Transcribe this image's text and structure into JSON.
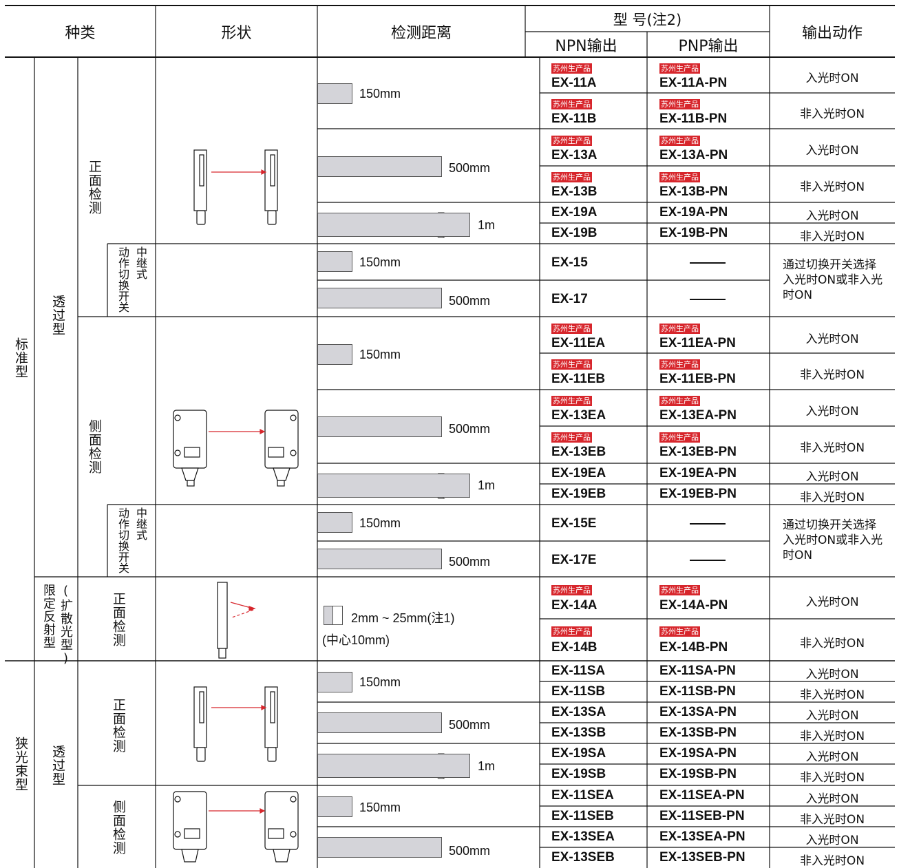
{
  "header": {
    "kind": "种类",
    "shape": "形状",
    "distance": "检测距离",
    "model": "型 号(注2)",
    "npn": "NPN输出",
    "pnp": "PNP输出",
    "output": "输出动作"
  },
  "categories": {
    "standard": "标准型",
    "narrow": "狭光束型",
    "through": "透过型",
    "through2": "透过型",
    "limited": "限定反射型",
    "diffuse": "(扩散光型)",
    "front1": "正面检测",
    "side1": "侧面检测",
    "front_lim": "正面检测",
    "front2": "正面检测",
    "side2": "侧面检测",
    "relay1a": "中继式",
    "relay1b": "动作切换开关",
    "relay2a": "中继式",
    "relay2b": "动作切换开关"
  },
  "tag": "苏州生产品",
  "dash": "—",
  "distances": {
    "d150": "150mm",
    "d500": "500mm",
    "d1m": "1m",
    "limited": "2mm ~ 25mm(注1)",
    "limited_center": "(中心10mm)"
  },
  "actions": {
    "on": "入光时ON",
    "off": "非入光时ON",
    "switch": "通过切换开关选择入光时ON或非入光时ON"
  },
  "rows": [
    {
      "npn": "EX-11A",
      "pnp": "EX-11A-PN",
      "act": "入光时ON"
    },
    {
      "npn": "EX-11B",
      "pnp": "EX-11B-PN",
      "act": "非入光时ON"
    },
    {
      "npn": "EX-13A",
      "pnp": "EX-13A-PN",
      "act": "入光时ON"
    },
    {
      "npn": "EX-13B",
      "pnp": "EX-13B-PN",
      "act": "非入光时ON"
    },
    {
      "npn": "EX-19A",
      "pnp": "EX-19A-PN",
      "act": "入光时ON"
    },
    {
      "npn": "EX-19B",
      "pnp": "EX-19B-PN",
      "act": "非入光时ON"
    },
    {
      "npn": "EX-15",
      "pnp": "",
      "act": ""
    },
    {
      "npn": "EX-17",
      "pnp": "",
      "act": ""
    },
    {
      "npn": "EX-11EA",
      "pnp": "EX-11EA-PN",
      "act": "入光时ON"
    },
    {
      "npn": "EX-11EB",
      "pnp": "EX-11EB-PN",
      "act": "非入光时ON"
    },
    {
      "npn": "EX-13EA",
      "pnp": "EX-13EA-PN",
      "act": "入光时ON"
    },
    {
      "npn": "EX-13EB",
      "pnp": "EX-13EB-PN",
      "act": "非入光时ON"
    },
    {
      "npn": "EX-19EA",
      "pnp": "EX-19EA-PN",
      "act": "入光时ON"
    },
    {
      "npn": "EX-19EB",
      "pnp": "EX-19EB-PN",
      "act": "非入光时ON"
    },
    {
      "npn": "EX-15E",
      "pnp": "",
      "act": ""
    },
    {
      "npn": "EX-17E",
      "pnp": "",
      "act": ""
    },
    {
      "npn": "EX-14A",
      "pnp": "EX-14A-PN",
      "act": "入光时ON"
    },
    {
      "npn": "EX-14B",
      "pnp": "EX-14B-PN",
      "act": "非入光时ON"
    },
    {
      "npn": "EX-11SA",
      "pnp": "EX-11SA-PN",
      "act": "入光时ON"
    },
    {
      "npn": "EX-11SB",
      "pnp": "EX-11SB-PN",
      "act": "非入光时ON"
    },
    {
      "npn": "EX-13SA",
      "pnp": "EX-13SA-PN",
      "act": "入光时ON"
    },
    {
      "npn": "EX-13SB",
      "pnp": "EX-13SB-PN",
      "act": "非入光时ON"
    },
    {
      "npn": "EX-19SA",
      "pnp": "EX-19SA-PN",
      "act": "入光时ON"
    },
    {
      "npn": "EX-19SB",
      "pnp": "EX-19SB-PN",
      "act": "非入光时ON"
    },
    {
      "npn": "EX-11SEA",
      "pnp": "EX-11SEA-PN",
      "act": "入光时ON"
    },
    {
      "npn": "EX-11SEB",
      "pnp": "EX-11SEB-PN",
      "act": "非入光时ON"
    },
    {
      "npn": "EX-13SEA",
      "pnp": "EX-13SEA-PN",
      "act": "入光时ON"
    },
    {
      "npn": "EX-13SEB",
      "pnp": "EX-13SEB-PN",
      "act": "非入光时ON"
    }
  ]
}
